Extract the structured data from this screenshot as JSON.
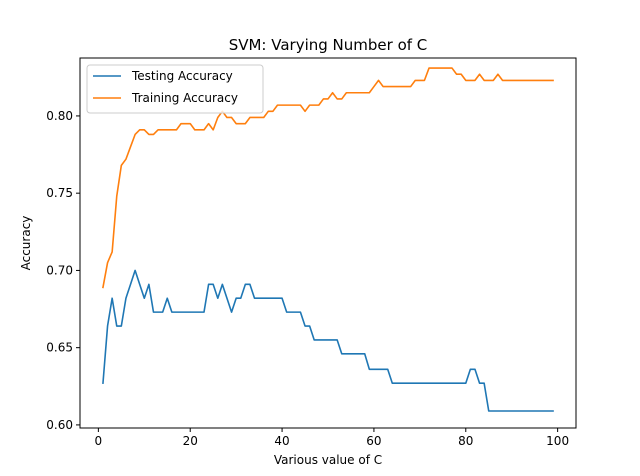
{
  "chart_data": {
    "type": "line",
    "title": "SVM: Varying Number of C",
    "xlabel": "Various value of C",
    "ylabel": "Accuracy",
    "xlim": [
      -4,
      104
    ],
    "ylim": [
      0.598,
      0.8375
    ],
    "x_ticks": [
      0,
      20,
      40,
      60,
      80,
      100
    ],
    "y_ticks": [
      0.6,
      0.65,
      0.7,
      0.75,
      0.8
    ],
    "grid": false,
    "legend_position": "top-left",
    "x": [
      1,
      2,
      3,
      4,
      5,
      6,
      7,
      8,
      9,
      10,
      11,
      12,
      13,
      14,
      15,
      16,
      17,
      18,
      19,
      20,
      21,
      22,
      23,
      24,
      25,
      26,
      27,
      28,
      29,
      30,
      31,
      32,
      33,
      34,
      35,
      36,
      37,
      38,
      39,
      40,
      41,
      42,
      43,
      44,
      45,
      46,
      47,
      48,
      49,
      50,
      51,
      52,
      53,
      54,
      55,
      56,
      57,
      58,
      59,
      60,
      61,
      62,
      63,
      64,
      65,
      66,
      67,
      68,
      69,
      70,
      71,
      72,
      73,
      74,
      75,
      76,
      77,
      78,
      79,
      80,
      81,
      82,
      83,
      84,
      85,
      86,
      87,
      88,
      89,
      90,
      91,
      92,
      93,
      94,
      95,
      96,
      97,
      98,
      99
    ],
    "series": [
      {
        "name": "Testing Accuracy",
        "color": "#1f77b4",
        "values": [
          0.627,
          0.664,
          0.682,
          0.664,
          0.664,
          0.682,
          0.691,
          0.7,
          0.691,
          0.682,
          0.691,
          0.673,
          0.673,
          0.673,
          0.682,
          0.673,
          0.673,
          0.673,
          0.673,
          0.673,
          0.673,
          0.673,
          0.673,
          0.691,
          0.691,
          0.682,
          0.691,
          0.682,
          0.673,
          0.682,
          0.682,
          0.691,
          0.691,
          0.682,
          0.682,
          0.682,
          0.682,
          0.682,
          0.682,
          0.682,
          0.673,
          0.673,
          0.673,
          0.673,
          0.664,
          0.664,
          0.655,
          0.655,
          0.655,
          0.655,
          0.655,
          0.655,
          0.646,
          0.646,
          0.646,
          0.646,
          0.646,
          0.646,
          0.636,
          0.636,
          0.636,
          0.636,
          0.636,
          0.627,
          0.627,
          0.627,
          0.627,
          0.627,
          0.627,
          0.627,
          0.627,
          0.627,
          0.627,
          0.627,
          0.627,
          0.627,
          0.627,
          0.627,
          0.627,
          0.627,
          0.636,
          0.636,
          0.627,
          0.627,
          0.609,
          0.609,
          0.609,
          0.609,
          0.609,
          0.609,
          0.609,
          0.609,
          0.609,
          0.609,
          0.609,
          0.609,
          0.609,
          0.609,
          0.609
        ]
      },
      {
        "name": "Training Accuracy",
        "color": "#ff7f0e",
        "values": [
          0.689,
          0.705,
          0.712,
          0.748,
          0.768,
          0.772,
          0.78,
          0.788,
          0.791,
          0.791,
          0.788,
          0.788,
          0.791,
          0.791,
          0.791,
          0.791,
          0.791,
          0.795,
          0.795,
          0.795,
          0.791,
          0.791,
          0.791,
          0.795,
          0.791,
          0.799,
          0.803,
          0.799,
          0.799,
          0.795,
          0.795,
          0.795,
          0.799,
          0.799,
          0.799,
          0.799,
          0.803,
          0.803,
          0.807,
          0.807,
          0.807,
          0.807,
          0.807,
          0.807,
          0.803,
          0.807,
          0.807,
          0.807,
          0.811,
          0.811,
          0.815,
          0.811,
          0.811,
          0.815,
          0.815,
          0.815,
          0.815,
          0.815,
          0.815,
          0.819,
          0.823,
          0.819,
          0.819,
          0.819,
          0.819,
          0.819,
          0.819,
          0.819,
          0.823,
          0.823,
          0.823,
          0.831,
          0.831,
          0.831,
          0.831,
          0.831,
          0.831,
          0.827,
          0.827,
          0.823,
          0.823,
          0.823,
          0.827,
          0.823,
          0.823,
          0.823,
          0.827,
          0.823,
          0.823,
          0.823,
          0.823,
          0.823,
          0.823,
          0.823,
          0.823,
          0.823,
          0.823,
          0.823,
          0.823
        ]
      }
    ]
  }
}
